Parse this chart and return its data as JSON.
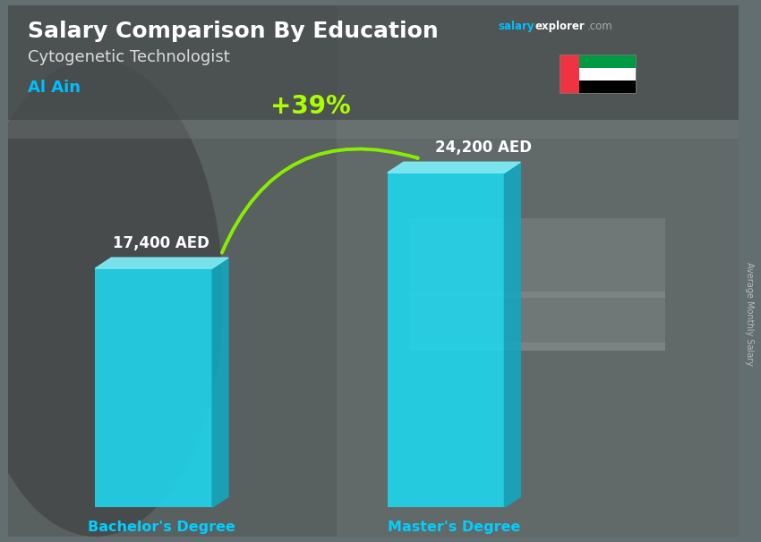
{
  "title": "Salary Comparison By Education",
  "subtitle": "Cytogenetic Technologist",
  "location": "Al Ain",
  "categories": [
    "Bachelor's Degree",
    "Master's Degree"
  ],
  "values": [
    17400,
    24200
  ],
  "value_labels": [
    "17,400 AED",
    "24,200 AED"
  ],
  "pct_change": "+39%",
  "bar_color_front": "#1ED8F0",
  "bar_color_top": "#7EEEF8",
  "bar_color_side": "#12A8C0",
  "bg_color": "#636e70",
  "title_color": "#ffffff",
  "subtitle_color": "#dddddd",
  "location_color": "#00BFFF",
  "value_label_color": "#ffffff",
  "xlabel_color": "#00CFFF",
  "pct_color": "#AAFF00",
  "arrow_color": "#88EE00",
  "site_salary_color": "#00BFFF",
  "site_explorer_color": "#ffffff",
  "site_com_color": "#aaaaaa",
  "rotated_label": "Average Monthly Salary",
  "rotated_label_color": "#cccccc",
  "flag_green": "#009A44",
  "flag_white": "#FFFFFF",
  "flag_black": "#000000",
  "flag_red": "#EF3340"
}
